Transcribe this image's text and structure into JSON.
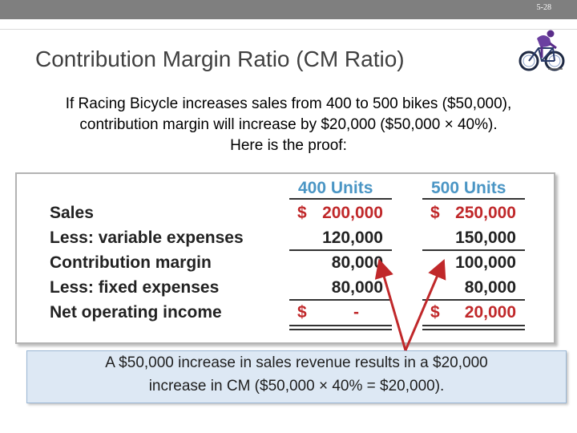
{
  "slide": {
    "number": "5-28"
  },
  "title": "Contribution Margin Ratio (CM Ratio)",
  "intro": {
    "line1": "If Racing Bicycle increases sales from 400 to 500 bikes ($50,000),",
    "line2": "contribution margin will increase by $20,000 ($50,000 × 40%).",
    "line3": "Here is the proof:"
  },
  "table": {
    "headers": {
      "col1": "400 Units",
      "col2": "500 Units"
    },
    "rows": [
      {
        "label": "Sales",
        "sym1": "$",
        "v1": "200,000",
        "sym2": "$",
        "v2": "250,000"
      },
      {
        "label": "Less: variable expenses",
        "sym1": "",
        "v1": "120,000",
        "sym2": "",
        "v2": "150,000"
      },
      {
        "label": "Contribution margin",
        "sym1": "",
        "v1": "80,000",
        "sym2": "",
        "v2": "100,000"
      },
      {
        "label": "Less: fixed expenses",
        "sym1": "",
        "v1": "80,000",
        "sym2": "",
        "v2": "80,000"
      },
      {
        "label": "Net operating income",
        "sym1": "$",
        "v1": "-",
        "sym2": "$",
        "v2": "20,000"
      }
    ]
  },
  "callout": {
    "line1": "A $50,000 increase in sales revenue results in a $20,000",
    "line2": "increase in CM ($50,000 × 40% = $20,000)."
  },
  "colors": {
    "header": "#4a95c4",
    "currency": "#c0282a",
    "arrow": "#c0282a",
    "callout_bg": "#dde8f4"
  },
  "icons": {
    "bike": "bicycle-rider-icon"
  }
}
